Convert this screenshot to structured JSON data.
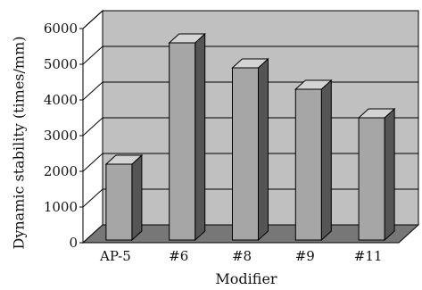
{
  "chart_data": {
    "type": "bar",
    "style": "3d",
    "categories": [
      "AP-5",
      "#6",
      "#8",
      "#9",
      "#11"
    ],
    "values": [
      2200,
      5600,
      4900,
      4300,
      3500
    ],
    "xlabel": "Modifier",
    "ylabel": "Dynamic stability (times/mm)",
    "ylim": [
      0,
      6000
    ],
    "yticks": [
      "0",
      "1000",
      "2000",
      "3000",
      "4000",
      "5000",
      "6000"
    ],
    "grid": true,
    "legend": "none",
    "colors": {
      "bar_front": "#a6a6a6",
      "bar_side": "#555555",
      "bar_top": "#d4d4d4",
      "back_wall": "#c0c0c0",
      "side_wall": "#ffffff",
      "floor": "#777777",
      "gridline": "#000000"
    }
  }
}
